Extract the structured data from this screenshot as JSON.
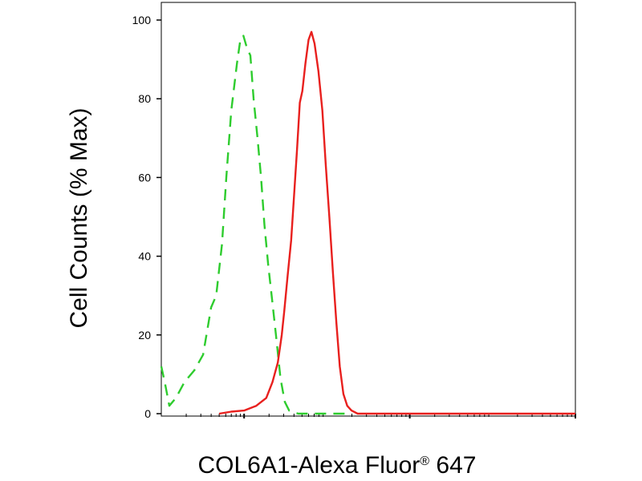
{
  "chart_data": {
    "type": "line",
    "title": "",
    "xlabel": "COL6A1-Alexa Fluor",
    "xlabel_sup": "®",
    "xlabel_suffix": " 647",
    "ylabel": "Cell Counts (% Max)",
    "x_scale": "log",
    "xlim": [
      1,
      100000
    ],
    "ylim": [
      0,
      100
    ],
    "y_ticks": [
      0,
      20,
      40,
      60,
      80,
      100
    ],
    "y_tick_labels": [
      "0",
      "20",
      "40",
      "60",
      "80",
      "100"
    ],
    "x_major_ticks": [
      10,
      1000,
      100000
    ],
    "grid": false,
    "legend": "none",
    "series": [
      {
        "color": "#2ecc2e",
        "line_style": "dashed",
        "points": [
          [
            1.0,
            12
          ],
          [
            1.1,
            8
          ],
          [
            1.25,
            2
          ],
          [
            1.5,
            4
          ],
          [
            1.9,
            8
          ],
          [
            2.5,
            11
          ],
          [
            3.2,
            15
          ],
          [
            4.0,
            27
          ],
          [
            4.6,
            30
          ],
          [
            5.4,
            43
          ],
          [
            6.1,
            60
          ],
          [
            7.0,
            77
          ],
          [
            8.2,
            89
          ],
          [
            9.0,
            95
          ],
          [
            9.8,
            96
          ],
          [
            10.8,
            93
          ],
          [
            11.9,
            91
          ],
          [
            13.0,
            80
          ],
          [
            14.5,
            70
          ],
          [
            16.0,
            60
          ],
          [
            17.6,
            48
          ],
          [
            19.5,
            38
          ],
          [
            21.5,
            30
          ],
          [
            24.5,
            19
          ],
          [
            27.5,
            9
          ],
          [
            31.0,
            3
          ],
          [
            35.0,
            0.8
          ],
          [
            45.0,
            0
          ],
          [
            60.0,
            0
          ],
          [
            90.0,
            0
          ],
          [
            200.0,
            0
          ]
        ]
      },
      {
        "color": "#e8201e",
        "line_style": "solid",
        "points": [
          [
            5.0,
            0
          ],
          [
            7.0,
            0.5
          ],
          [
            10.0,
            0.8
          ],
          [
            14.0,
            2
          ],
          [
            18.5,
            4
          ],
          [
            22.0,
            8
          ],
          [
            25.5,
            13
          ],
          [
            28.5,
            20
          ],
          [
            30.5,
            26
          ],
          [
            33.5,
            35
          ],
          [
            37.0,
            44
          ],
          [
            40.0,
            55
          ],
          [
            43.5,
            67
          ],
          [
            47.0,
            79
          ],
          [
            50.5,
            82
          ],
          [
            55.0,
            89
          ],
          [
            60.0,
            95
          ],
          [
            65.0,
            97
          ],
          [
            71.0,
            94
          ],
          [
            79.0,
            87
          ],
          [
            88.0,
            77
          ],
          [
            97.0,
            63
          ],
          [
            107.0,
            50
          ],
          [
            118.0,
            36
          ],
          [
            130.0,
            23
          ],
          [
            143.0,
            12
          ],
          [
            158.0,
            5
          ],
          [
            176.0,
            2
          ],
          [
            198.0,
            0.8
          ],
          [
            235.0,
            0
          ],
          [
            400.0,
            0
          ],
          [
            2000.0,
            0
          ],
          [
            10000.0,
            0
          ],
          [
            100000.0,
            0
          ]
        ]
      }
    ]
  }
}
